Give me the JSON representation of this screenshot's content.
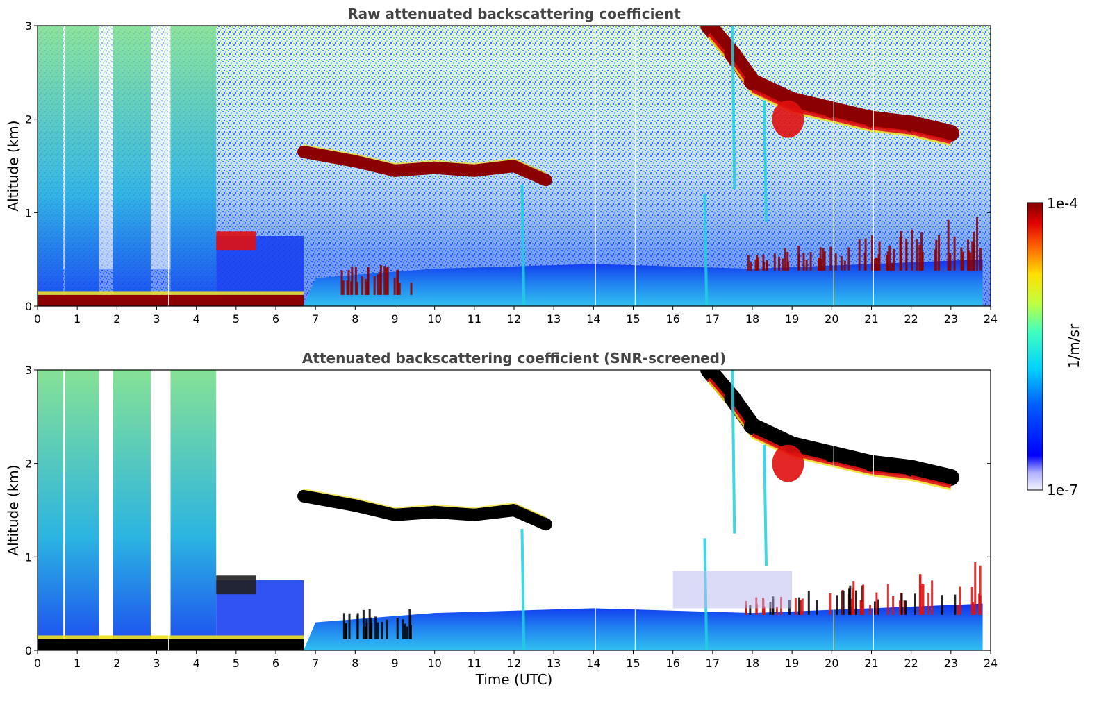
{
  "chart_data": [
    {
      "type": "heatmap",
      "title": "Raw attenuated backscattering coefficient",
      "xlabel": "",
      "ylabel": "Altitude (km)",
      "xlim": [
        0,
        24
      ],
      "ylim": [
        0,
        3
      ],
      "x_ticks": [
        "0",
        "1",
        "2",
        "3",
        "4",
        "5",
        "6",
        "7",
        "8",
        "9",
        "10",
        "11",
        "12",
        "13",
        "14",
        "15",
        "16",
        "17",
        "18",
        "19",
        "20",
        "21",
        "22",
        "23",
        "24"
      ],
      "y_ticks": [
        "0",
        "1",
        "2",
        "3"
      ],
      "features": {
        "surface_layer": {
          "x": [
            0,
            6.7
          ],
          "y": [
            0,
            0.12
          ]
        },
        "aerosol_layer": {
          "x": [
            4.5,
            5.5
          ],
          "y": [
            0.6,
            0.8
          ]
        },
        "cloud_layer_low": [
          {
            "x": 6.7,
            "y": 1.65
          },
          {
            "x": 8,
            "y": 1.55
          },
          {
            "x": 9,
            "y": 1.45
          },
          {
            "x": 10,
            "y": 1.48
          },
          {
            "x": 11,
            "y": 1.45
          },
          {
            "x": 12,
            "y": 1.5
          },
          {
            "x": 12.8,
            "y": 1.35
          }
        ],
        "cloud_layer_high": [
          {
            "x": 16.9,
            "y": 3.0
          },
          {
            "x": 17.5,
            "y": 2.7
          },
          {
            "x": 18,
            "y": 2.4
          },
          {
            "x": 19,
            "y": 2.2
          },
          {
            "x": 20,
            "y": 2.1
          },
          {
            "x": 21,
            "y": 2.0
          },
          {
            "x": 22,
            "y": 1.95
          },
          {
            "x": 23,
            "y": 1.85
          }
        ],
        "boundary_layer_top": [
          {
            "x": 7,
            "y": 0.3
          },
          {
            "x": 10,
            "y": 0.4
          },
          {
            "x": 14,
            "y": 0.45
          },
          {
            "x": 18,
            "y": 0.4
          },
          {
            "x": 21,
            "y": 0.45
          },
          {
            "x": 23.8,
            "y": 0.5
          }
        ]
      }
    },
    {
      "type": "heatmap",
      "title": "Attenuated backscattering coefficient (SNR-screened)",
      "xlabel": "Time (UTC)",
      "ylabel": "Altitude (km)",
      "xlim": [
        0,
        24
      ],
      "ylim": [
        0,
        3
      ],
      "x_ticks": [
        "0",
        "1",
        "2",
        "3",
        "4",
        "5",
        "6",
        "7",
        "8",
        "9",
        "10",
        "11",
        "12",
        "13",
        "14",
        "15",
        "16",
        "17",
        "18",
        "19",
        "20",
        "21",
        "22",
        "23",
        "24"
      ],
      "y_ticks": [
        "0",
        "1",
        "2",
        "3"
      ]
    }
  ],
  "colorbar": {
    "label": "1/m/sr",
    "max_label": "1e-4",
    "min_label": "1e-7",
    "range": [
      1e-07,
      0.0001
    ],
    "scale": "log",
    "colormap": "jet"
  },
  "colors": {
    "dark_red": "#8b0000",
    "red": "#e01010",
    "yellow": "#f0e020",
    "cyan": "#20d0e0",
    "blue": "#0030ff",
    "light_blue": "#50b0f0",
    "title_gray": "#444444"
  }
}
